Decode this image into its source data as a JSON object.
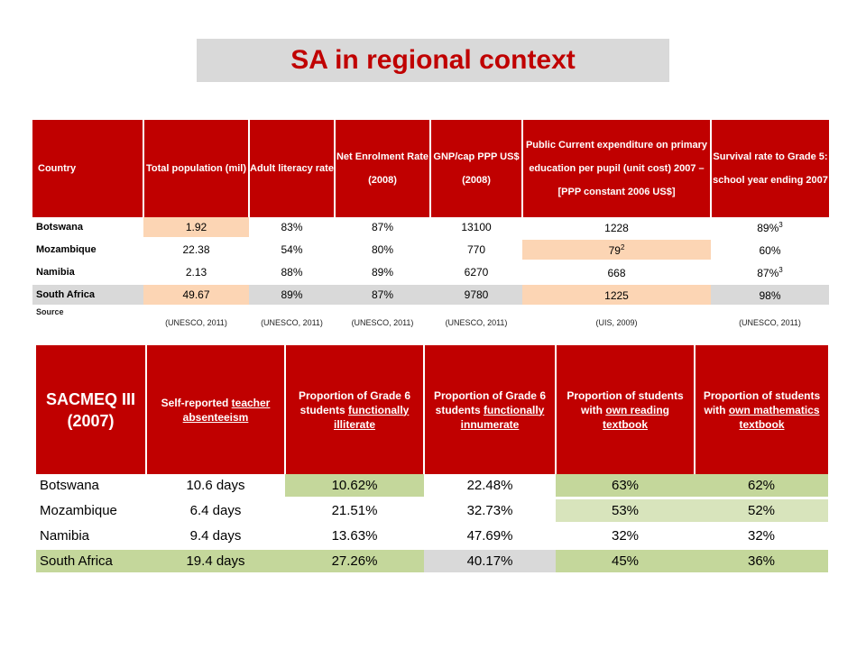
{
  "title": "SA in regional context",
  "table1": {
    "headers": [
      "Country",
      "Total population (mil)",
      "Adult literacy rate",
      "Net Enrolment Rate (2008)",
      "GNP/cap PPP US$ (2008)",
      "Public Current expenditure on primary education per pupil (unit cost) 2007 – [PPP constant 2006 US$]",
      "Survival rate to Grade 5: school year ending 2007"
    ],
    "rows": [
      {
        "country": "Botswana",
        "pop": "1.92",
        "literacy": "83%",
        "ner": "87%",
        "gnp": "13100",
        "exp": "1228",
        "exp_sup": "",
        "survival": "89%",
        "survival_sup": "3"
      },
      {
        "country": "Mozambique",
        "pop": "22.38",
        "literacy": "54%",
        "ner": "80%",
        "gnp": "770",
        "exp": "79",
        "exp_sup": "2",
        "survival": "60%",
        "survival_sup": ""
      },
      {
        "country": "Namibia",
        "pop": "2.13",
        "literacy": "88%",
        "ner": "89%",
        "gnp": "6270",
        "exp": "668",
        "exp_sup": "",
        "survival": "87%",
        "survival_sup": "3"
      },
      {
        "country": "South Africa",
        "pop": "49.67",
        "literacy": "89%",
        "ner": "87%",
        "gnp": "9780",
        "exp": "1225",
        "exp_sup": "",
        "survival": "98%",
        "survival_sup": ""
      }
    ],
    "source_label": "Source",
    "sources": [
      "(UNESCO, 2011)",
      "(UNESCO, 2011)",
      "(UNESCO, 2011)",
      "(UNESCO, 2011)",
      "(UIS, 2009)",
      "(UNESCO, 2011)"
    ]
  },
  "table2": {
    "title": "SACMEQ III (2007)",
    "headers": [
      {
        "pre": "Self-reported ",
        "u": "teacher absenteeism",
        "post": ""
      },
      {
        "pre": "Proportion of Grade 6 students ",
        "u": "functionally illiterate",
        "post": ""
      },
      {
        "pre": "Proportion of Grade 6 students ",
        "u": "functionally innumerate",
        "post": ""
      },
      {
        "pre": "Proportion of students with ",
        "u": "own reading textbook",
        "post": ""
      },
      {
        "pre": "Proportion of students with ",
        "u": "own mathematics textbook",
        "post": ""
      }
    ],
    "rows": [
      {
        "country": "Botswana",
        "absent": "10.6 days",
        "illiterate": "10.62%",
        "innumerate": "22.48%",
        "reading": "63%",
        "math": "62%"
      },
      {
        "country": "Mozambique",
        "absent": "6.4 days",
        "illiterate": "21.51%",
        "innumerate": "32.73%",
        "reading": "53%",
        "math": "52%"
      },
      {
        "country": "Namibia",
        "absent": "9.4 days",
        "illiterate": "13.63%",
        "innumerate": "47.69%",
        "reading": "32%",
        "math": "32%"
      },
      {
        "country": "South Africa",
        "absent": "19.4 days",
        "illiterate": "27.26%",
        "innumerate": "40.17%",
        "reading": "45%",
        "math": "36%"
      }
    ]
  },
  "colors": {
    "header_red": "#c00000",
    "peach": "#fcd5b4",
    "grey": "#d9d9d9",
    "green": "#c4d79b",
    "light_green": "#d8e4bc"
  }
}
